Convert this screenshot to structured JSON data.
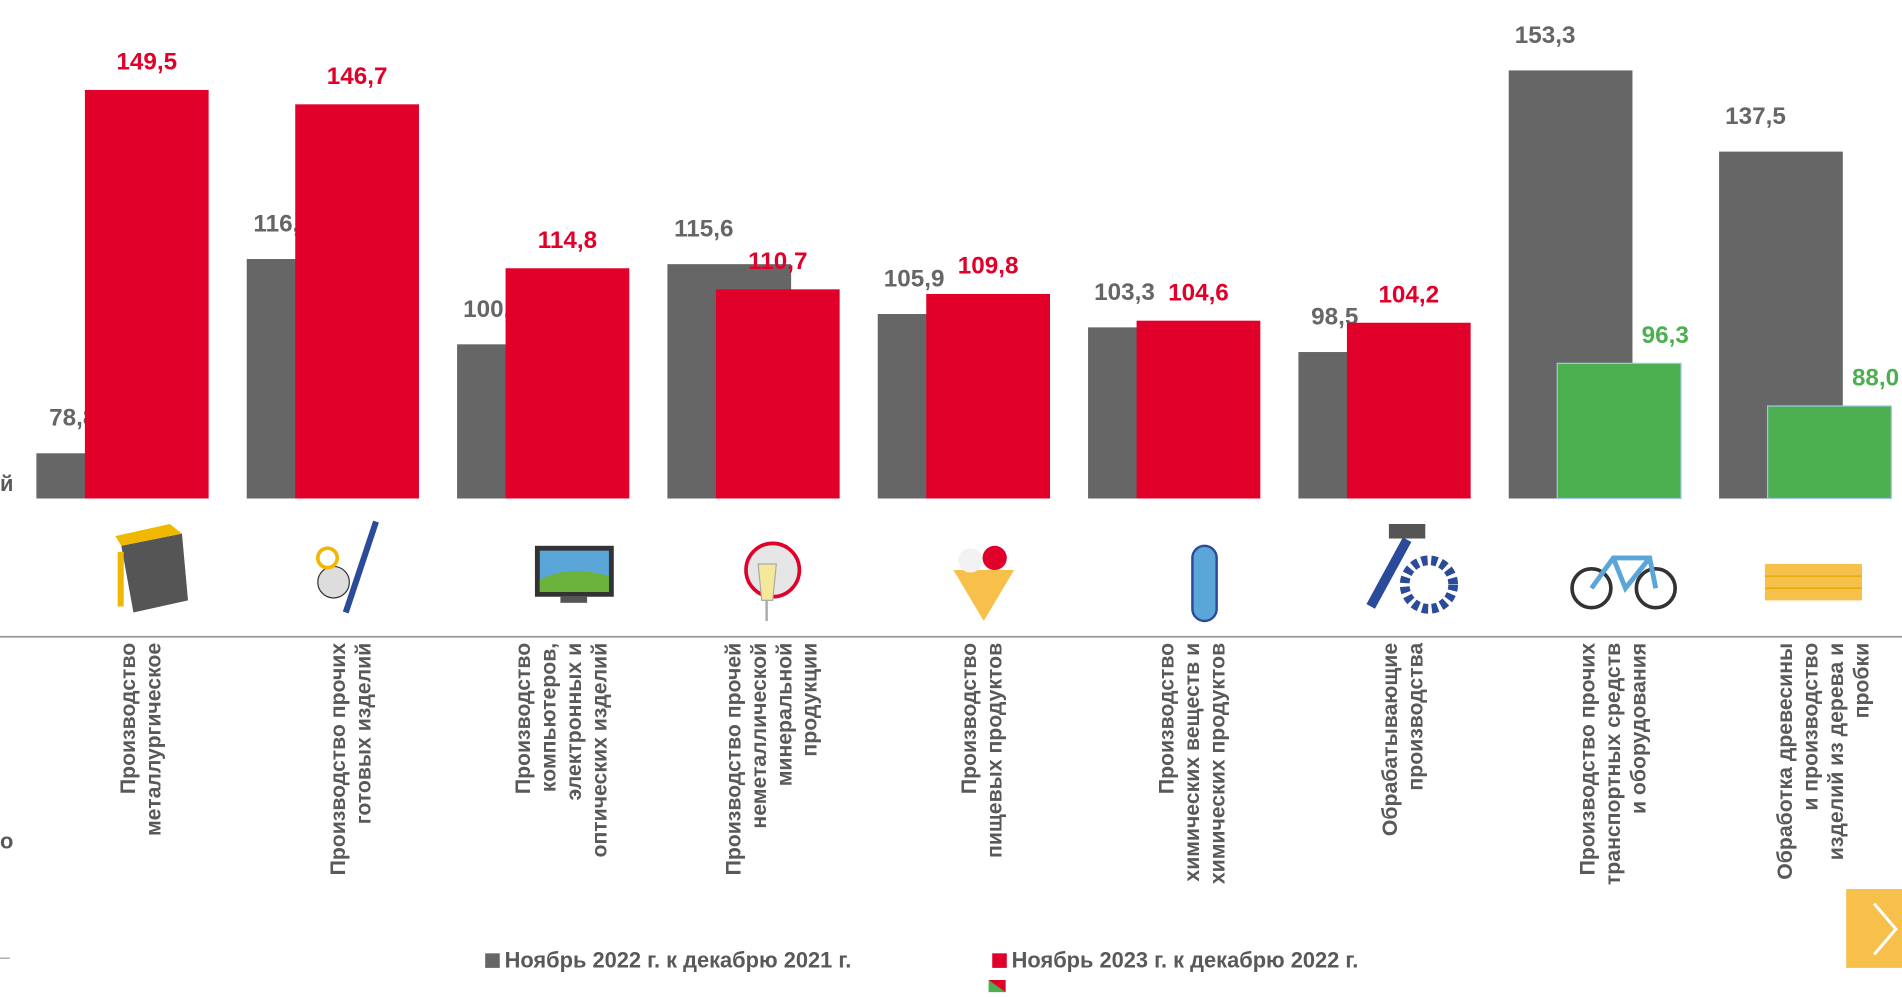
{
  "chart_data": {
    "type": "bar",
    "categories": [
      [
        "Производство",
        "металлургическое"
      ],
      [
        "Производство прочих",
        "готовых изделий"
      ],
      [
        "Производство",
        "компьютеров,",
        "электронных и",
        "оптических изделий"
      ],
      [
        "Производство прочей",
        "неметаллической",
        "минеральной",
        "продукции"
      ],
      [
        "Производство",
        "пищевых продуктов"
      ],
      [
        "Производство",
        "химических веществ и",
        "химических продуктов"
      ],
      [
        "Обрабатывающие",
        "производства"
      ],
      [
        "Производство прочих",
        "транспортных средств",
        "и оборудования"
      ],
      [
        "Обработка древесины",
        "и производство",
        "изделий из дерева и",
        "пробки"
      ]
    ],
    "series": [
      {
        "name": "Ноябрь 2022 г. к декабрю 2021 г.",
        "color": "#666666",
        "values": [
          78.8,
          116.6,
          100.0,
          115.6,
          105.9,
          103.3,
          98.5,
          153.3,
          137.5
        ],
        "value_labels": [
          "78,8",
          "116,6",
          "100,0",
          "115,6",
          "105,9",
          "103,3",
          "98,5",
          "153,3",
          "137,5"
        ]
      },
      {
        "name": "Ноябрь 2023 г. к декабрю 2022 г.",
        "color": "#e0002a",
        "colors": [
          "#e0002a",
          "#e0002a",
          "#e0002a",
          "#e0002a",
          "#e0002a",
          "#e0002a",
          "#e0002a",
          "#4caf50",
          "#4caf50"
        ],
        "values": [
          149.5,
          146.7,
          114.8,
          110.7,
          109.8,
          104.6,
          104.2,
          96.3,
          88.0
        ],
        "value_labels": [
          "149,5",
          "146,7",
          "114,8",
          "110,7",
          "109,8",
          "104,6",
          "104,2",
          "96,3",
          "88,0"
        ]
      }
    ],
    "ylim": [
      70,
      167
    ],
    "fragments": [
      "й",
      "о"
    ]
  }
}
